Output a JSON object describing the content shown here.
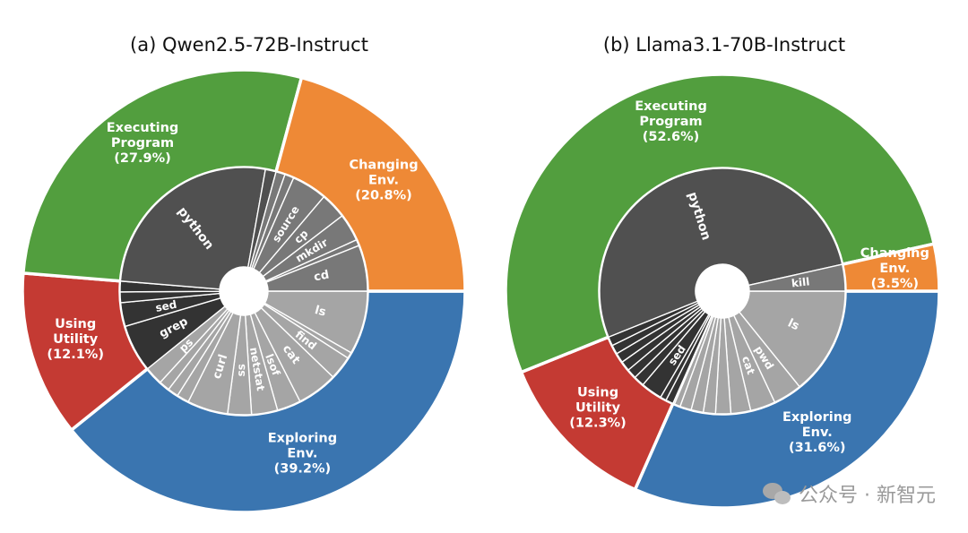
{
  "chart_data": [
    {
      "type": "sunburst",
      "title": "(a) Qwen2.5-72B-Instruct",
      "outer": [
        {
          "name": "Exploring Env.",
          "line1": "Exploring",
          "line2": "Env.",
          "pct_label": "(39.2%)",
          "value": 39.2,
          "color": "#3a75b0"
        },
        {
          "name": "Using Utility",
          "line1": "Using",
          "line2": "Utility",
          "pct_label": "(12.1%)",
          "value": 12.1,
          "color": "#c43a33"
        },
        {
          "name": "Executing Program",
          "line1": "Executing",
          "line2": "Program",
          "pct_label": "(27.9%)",
          "value": 27.9,
          "color": "#529e3e"
        },
        {
          "name": "Changing Env.",
          "line1": "Changing",
          "line2": "Env.",
          "pct_label": "(20.8%)",
          "value": 20.8,
          "color": "#ee8936"
        }
      ],
      "inner": [
        {
          "label": "ls",
          "value": 8.3,
          "color": "#a5a5a5",
          "fs": 13
        },
        {
          "label": "",
          "value": 0.8,
          "color": "#a5a5a5"
        },
        {
          "label": "find",
          "value": 3.1,
          "color": "#a5a5a5",
          "fs": 12
        },
        {
          "label": "cat",
          "value": 5.3,
          "color": "#a5a5a5",
          "fs": 13
        },
        {
          "label": "lsof",
          "value": 3.1,
          "color": "#a5a5a5",
          "fs": 12
        },
        {
          "label": "netstat",
          "value": 3.4,
          "color": "#a5a5a5",
          "fs": 12
        },
        {
          "label": "ss",
          "value": 3.1,
          "color": "#a5a5a5",
          "fs": 12
        },
        {
          "label": "curl",
          "value": 5.3,
          "color": "#a5a5a5",
          "fs": 13
        },
        {
          "label": "",
          "value": 1.6,
          "color": "#a5a5a5"
        },
        {
          "label": "",
          "value": 1.4,
          "color": "#a5a5a5"
        },
        {
          "label": "",
          "value": 1.4,
          "color": "#a5a5a5"
        },
        {
          "label": "ps",
          "value": 2.4,
          "color": "#a5a5a5",
          "fs": 12
        },
        {
          "label": "grep",
          "value": 6.2,
          "color": "#333333",
          "fs": 13
        },
        {
          "label": "sed",
          "value": 3.1,
          "color": "#333333",
          "fs": 12
        },
        {
          "label": "",
          "value": 1.4,
          "color": "#333333"
        },
        {
          "label": "",
          "value": 1.4,
          "color": "#333333"
        },
        {
          "label": "python",
          "value": 26.5,
          "color": "#505050",
          "fs": 14
        },
        {
          "label": "",
          "value": 1.4,
          "color": "#505050"
        },
        {
          "label": "",
          "value": 1.2,
          "color": "#787878"
        },
        {
          "label": "",
          "value": 1.2,
          "color": "#787878"
        },
        {
          "label": "source",
          "value": 4.6,
          "color": "#787878",
          "fs": 12
        },
        {
          "label": "cp",
          "value": 3.4,
          "color": "#787878",
          "fs": 12
        },
        {
          "label": "mkdir",
          "value": 3.6,
          "color": "#787878",
          "fs": 12
        },
        {
          "label": "",
          "value": 0.8,
          "color": "#787878"
        },
        {
          "label": "cd",
          "value": 6.0,
          "color": "#787878",
          "fs": 13
        }
      ]
    },
    {
      "type": "sunburst",
      "title": "(b) Llama3.1-70B-Instruct",
      "outer": [
        {
          "name": "Exploring Env.",
          "line1": "Exploring",
          "line2": "Env.",
          "pct_label": "(31.6%)",
          "value": 31.6,
          "color": "#3a75b0"
        },
        {
          "name": "Using Utility",
          "line1": "Using",
          "line2": "Utility",
          "pct_label": "(12.3%)",
          "value": 12.3,
          "color": "#c43a33"
        },
        {
          "name": "Executing Program",
          "line1": "Executing",
          "line2": "Program",
          "pct_label": "(52.6%)",
          "value": 52.6,
          "color": "#529e3e"
        },
        {
          "name": "Changing Env.",
          "line1": "Changing",
          "line2": "Env.",
          "pct_label": "(3.5%)",
          "value": 3.5,
          "color": "#ee8936"
        }
      ],
      "inner": [
        {
          "label": "ls",
          "value": 14.2,
          "color": "#a5a5a5",
          "fs": 13
        },
        {
          "label": "pwd",
          "value": 3.8,
          "color": "#a5a5a5",
          "fs": 12
        },
        {
          "label": "cat",
          "value": 3.3,
          "color": "#a5a5a5",
          "fs": 12
        },
        {
          "label": "",
          "value": 2.6,
          "color": "#a5a5a5"
        },
        {
          "label": "",
          "value": 2.0,
          "color": "#a5a5a5"
        },
        {
          "label": "",
          "value": 1.6,
          "color": "#a5a5a5"
        },
        {
          "label": "",
          "value": 1.6,
          "color": "#a5a5a5"
        },
        {
          "label": "",
          "value": 1.5,
          "color": "#a5a5a5"
        },
        {
          "label": "",
          "value": 0.8,
          "color": "#a5a5a5"
        },
        {
          "label": "",
          "value": 0.2,
          "color": "#a5a5a5"
        },
        {
          "label": "",
          "value": 1.0,
          "color": "#333333"
        },
        {
          "label": "",
          "value": 0.8,
          "color": "#333333"
        },
        {
          "label": "sed",
          "value": 2.8,
          "color": "#333333",
          "fs": 12
        },
        {
          "label": "",
          "value": 1.4,
          "color": "#333333"
        },
        {
          "label": "",
          "value": 1.3,
          "color": "#333333"
        },
        {
          "label": "",
          "value": 1.3,
          "color": "#333333"
        },
        {
          "label": "",
          "value": 1.3,
          "color": "#333333"
        },
        {
          "label": "",
          "value": 1.2,
          "color": "#333333"
        },
        {
          "label": "",
          "value": 1.2,
          "color": "#333333"
        },
        {
          "label": "python",
          "value": 52.6,
          "color": "#505050",
          "fs": 14
        },
        {
          "label": "kill",
          "value": 3.5,
          "color": "#787878",
          "fs": 12
        }
      ]
    }
  ],
  "watermark": {
    "text": "公众号 · 新智元",
    "icon": "wechat-icon"
  }
}
